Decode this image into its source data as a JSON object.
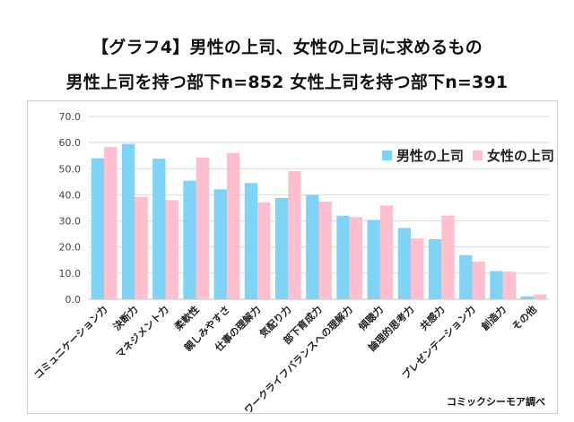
{
  "title_line1": "【グラフ4】男性の上司、女性の上司に求めるもの",
  "title_line2": "男性上司を持つ部下n=852 女性上司を持つ部下n=391",
  "source": "コミックシーモア調べ",
  "colors": {
    "male": "#7fd3f5",
    "female": "#ffbfcf",
    "grid": "#d9d9d9",
    "axis_text": "#444444"
  },
  "chart_data": {
    "type": "bar",
    "categories": [
      "コミュニケーション力",
      "決断力",
      "マネジメント力",
      "柔軟性",
      "親しみやすさ",
      "仕事の理解力",
      "気配り力",
      "部下育成力",
      "ワークライフバランスへの理解力",
      "傾聴力",
      "論理的思考力",
      "共感力",
      "プレゼンテーション力",
      "創造力",
      "その他"
    ],
    "series": [
      {
        "name": "男性の上司",
        "values": [
          54.0,
          59.5,
          53.8,
          45.4,
          42.1,
          44.5,
          38.8,
          39.9,
          32.0,
          30.4,
          27.3,
          23.0,
          16.9,
          10.8,
          1.1
        ]
      },
      {
        "name": "女性の上司",
        "values": [
          58.3,
          39.2,
          38.0,
          54.3,
          56.0,
          37.1,
          49.1,
          37.4,
          31.5,
          35.9,
          23.3,
          32.0,
          14.4,
          10.6,
          1.9
        ]
      }
    ],
    "ylim": [
      0,
      70
    ],
    "yticks": [
      "0.0",
      "10.0",
      "20.0",
      "30.0",
      "40.0",
      "50.0",
      "60.0",
      "70.0"
    ],
    "grid": true,
    "legend": "top-right"
  }
}
